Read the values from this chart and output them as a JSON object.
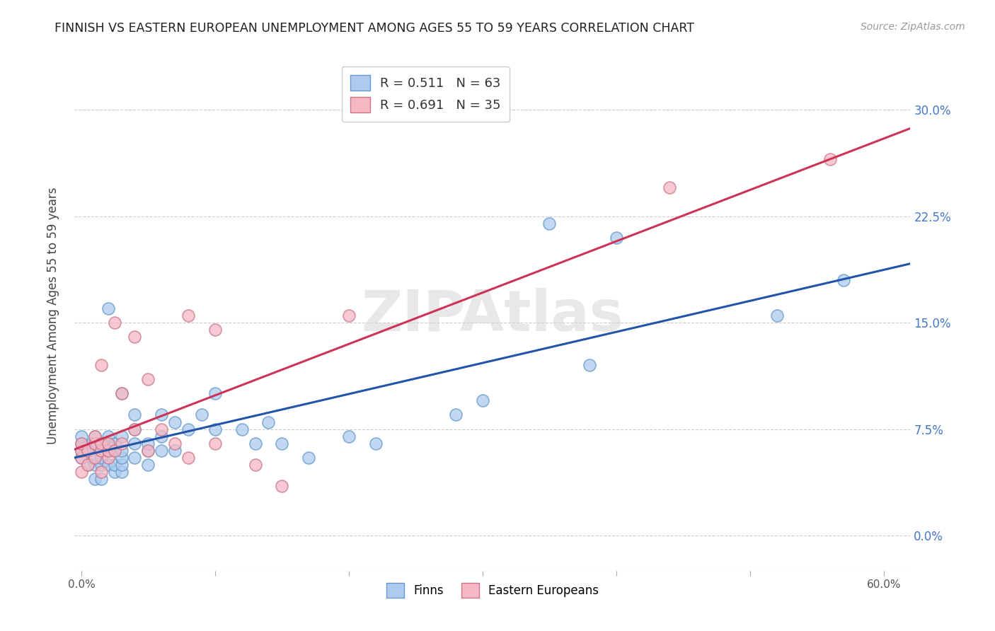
{
  "title": "FINNISH VS EASTERN EUROPEAN UNEMPLOYMENT AMONG AGES 55 TO 59 YEARS CORRELATION CHART",
  "source": "Source: ZipAtlas.com",
  "ylabel": "Unemployment Among Ages 55 to 59 years",
  "xlim": [
    -0.005,
    0.62
  ],
  "ylim": [
    -0.025,
    0.335
  ],
  "xticks": [
    0.0,
    0.1,
    0.2,
    0.3,
    0.4,
    0.5,
    0.6
  ],
  "xticklabels": [
    "0.0%",
    "",
    "",
    "",
    "",
    "",
    "60.0%"
  ],
  "yticks": [
    0.0,
    0.075,
    0.15,
    0.225,
    0.3
  ],
  "yticklabels_right": [
    "0.0%",
    "7.5%",
    "15.0%",
    "22.5%",
    "30.0%"
  ],
  "finns_color": "#AECBEE",
  "eastern_color": "#F5B8C4",
  "finns_edge_color": "#6699CC",
  "eastern_edge_color": "#CC7788",
  "finns_line_color": "#2255AA",
  "eastern_line_color": "#CC3355",
  "finns_R": 0.511,
  "finns_N": 63,
  "eastern_R": 0.691,
  "eastern_N": 35,
  "legend_labels": [
    "Finns",
    "Eastern Europeans"
  ],
  "watermark": "ZIPAtlas",
  "finns_x": [
    0.0,
    0.0,
    0.0,
    0.0,
    0.005,
    0.005,
    0.008,
    0.008,
    0.01,
    0.01,
    0.01,
    0.01,
    0.01,
    0.015,
    0.015,
    0.015,
    0.015,
    0.015,
    0.02,
    0.02,
    0.02,
    0.02,
    0.02,
    0.025,
    0.025,
    0.025,
    0.025,
    0.03,
    0.03,
    0.03,
    0.03,
    0.03,
    0.03,
    0.04,
    0.04,
    0.04,
    0.04,
    0.05,
    0.05,
    0.05,
    0.06,
    0.06,
    0.06,
    0.07,
    0.07,
    0.08,
    0.09,
    0.1,
    0.1,
    0.12,
    0.13,
    0.14,
    0.15,
    0.17,
    0.2,
    0.22,
    0.28,
    0.3,
    0.35,
    0.38,
    0.4,
    0.52,
    0.57
  ],
  "finns_y": [
    0.055,
    0.06,
    0.065,
    0.07,
    0.05,
    0.06,
    0.055,
    0.065,
    0.04,
    0.05,
    0.055,
    0.065,
    0.07,
    0.04,
    0.05,
    0.055,
    0.06,
    0.065,
    0.05,
    0.06,
    0.065,
    0.07,
    0.16,
    0.045,
    0.05,
    0.06,
    0.065,
    0.045,
    0.05,
    0.055,
    0.06,
    0.07,
    0.1,
    0.055,
    0.065,
    0.075,
    0.085,
    0.05,
    0.06,
    0.065,
    0.06,
    0.07,
    0.085,
    0.06,
    0.08,
    0.075,
    0.085,
    0.075,
    0.1,
    0.075,
    0.065,
    0.08,
    0.065,
    0.055,
    0.07,
    0.065,
    0.085,
    0.095,
    0.22,
    0.12,
    0.21,
    0.155,
    0.18
  ],
  "eastern_x": [
    0.0,
    0.0,
    0.0,
    0.0,
    0.005,
    0.005,
    0.01,
    0.01,
    0.01,
    0.015,
    0.015,
    0.015,
    0.015,
    0.02,
    0.02,
    0.02,
    0.025,
    0.025,
    0.03,
    0.03,
    0.04,
    0.04,
    0.05,
    0.05,
    0.06,
    0.07,
    0.08,
    0.08,
    0.1,
    0.1,
    0.13,
    0.15,
    0.2,
    0.44,
    0.56
  ],
  "eastern_y": [
    0.045,
    0.055,
    0.06,
    0.065,
    0.05,
    0.06,
    0.055,
    0.065,
    0.07,
    0.045,
    0.06,
    0.065,
    0.12,
    0.055,
    0.06,
    0.065,
    0.06,
    0.15,
    0.065,
    0.1,
    0.075,
    0.14,
    0.06,
    0.11,
    0.075,
    0.065,
    0.055,
    0.155,
    0.065,
    0.145,
    0.05,
    0.035,
    0.155,
    0.245,
    0.265
  ]
}
